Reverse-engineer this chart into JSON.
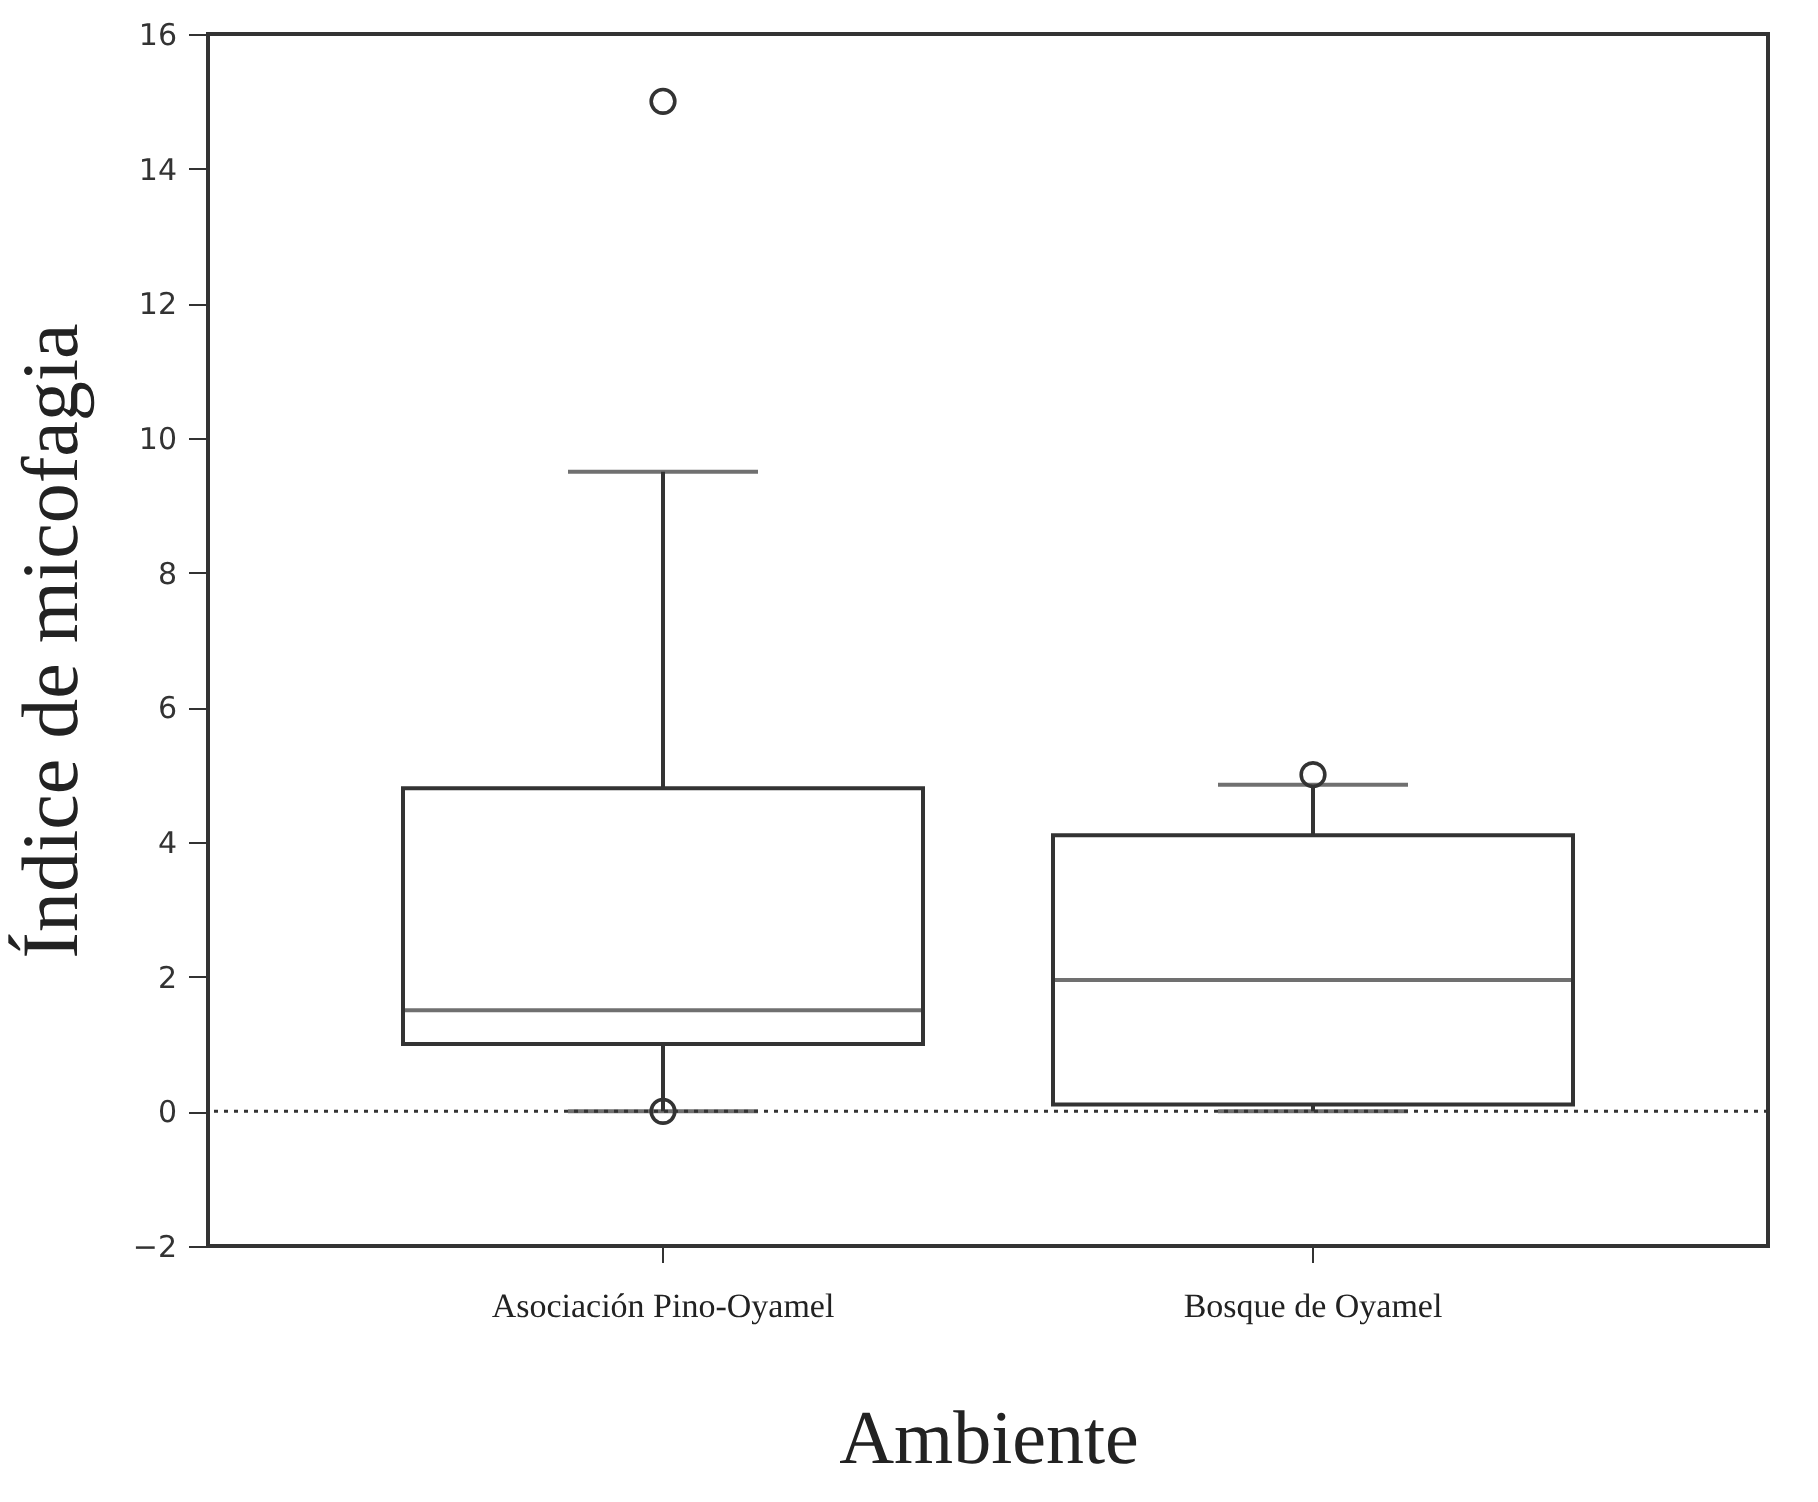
{
  "chart_data": {
    "type": "box",
    "xlabel": "Ambiente",
    "ylabel": "Índice de micofagia",
    "categories": [
      "Asociación Pino-Oyamel",
      "Bosque de Oyamel"
    ],
    "boxes": [
      {
        "low": 0,
        "q1": 1,
        "median": 1.5,
        "q3": 4.8,
        "high": 9.5,
        "outliers": [
          15,
          0
        ]
      },
      {
        "low": 0,
        "q1": 0.1,
        "median": 1.95,
        "q3": 4.1,
        "high": 4.85,
        "outliers": [
          5
        ]
      }
    ],
    "ylim": [
      -2,
      16
    ],
    "yticks": [
      -2,
      0,
      2,
      4,
      6,
      8,
      10,
      12,
      14,
      16
    ],
    "grid": false,
    "ref_lines": [
      {
        "axis": "y",
        "value": 0,
        "line_style": "dotted"
      }
    ]
  }
}
